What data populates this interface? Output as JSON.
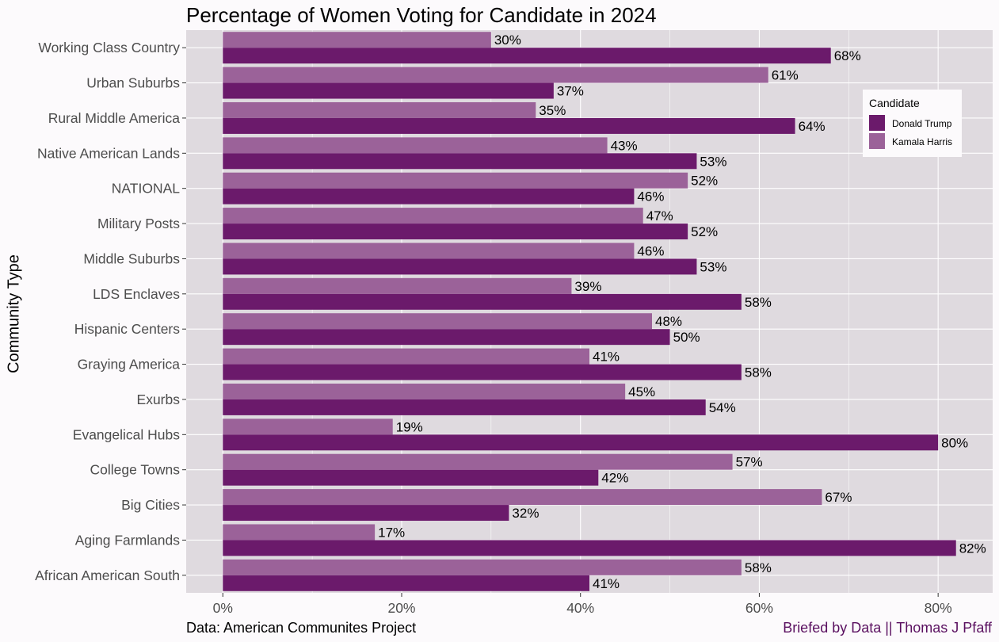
{
  "chart_data": {
    "type": "bar",
    "orientation": "horizontal",
    "title": "Percentage of Women Voting for Candidate in 2024",
    "ylabel": "Community Type",
    "xlabel": "",
    "categories": [
      "Working Class Country",
      "Urban Suburbs",
      "Rural Middle America",
      "Native American Lands",
      "NATIONAL",
      "Military Posts",
      "Middle Suburbs",
      "LDS Enclaves",
      "Hispanic Centers",
      "Graying America",
      "Exurbs",
      "Evangelical Hubs",
      "College Towns",
      "Big Cities",
      "Aging Farmlands",
      "African American South"
    ],
    "series": [
      {
        "name": "Donald Trump",
        "color": "#6b1a6b",
        "values": [
          68,
          37,
          64,
          53,
          46,
          52,
          53,
          58,
          50,
          58,
          54,
          80,
          42,
          32,
          82,
          41
        ]
      },
      {
        "name": "Kamala Harris",
        "color": "#9b6299",
        "values": [
          30,
          61,
          35,
          43,
          52,
          47,
          46,
          39,
          48,
          41,
          45,
          19,
          57,
          67,
          17,
          58
        ]
      }
    ],
    "data_label_suffix": "%",
    "xlim": [
      -4.1,
      86.1
    ],
    "xticks": [
      0,
      20,
      40,
      60,
      80
    ],
    "xtick_labels": [
      "0%",
      "20%",
      "40%",
      "60%",
      "80%"
    ],
    "legend": {
      "title": "Candidate",
      "position": "top-right"
    },
    "grid": true,
    "panel_color": "#dfdadf",
    "source": "Data: American Communites Project",
    "credit": "Briefed by Data || Thomas J Pfaff"
  }
}
